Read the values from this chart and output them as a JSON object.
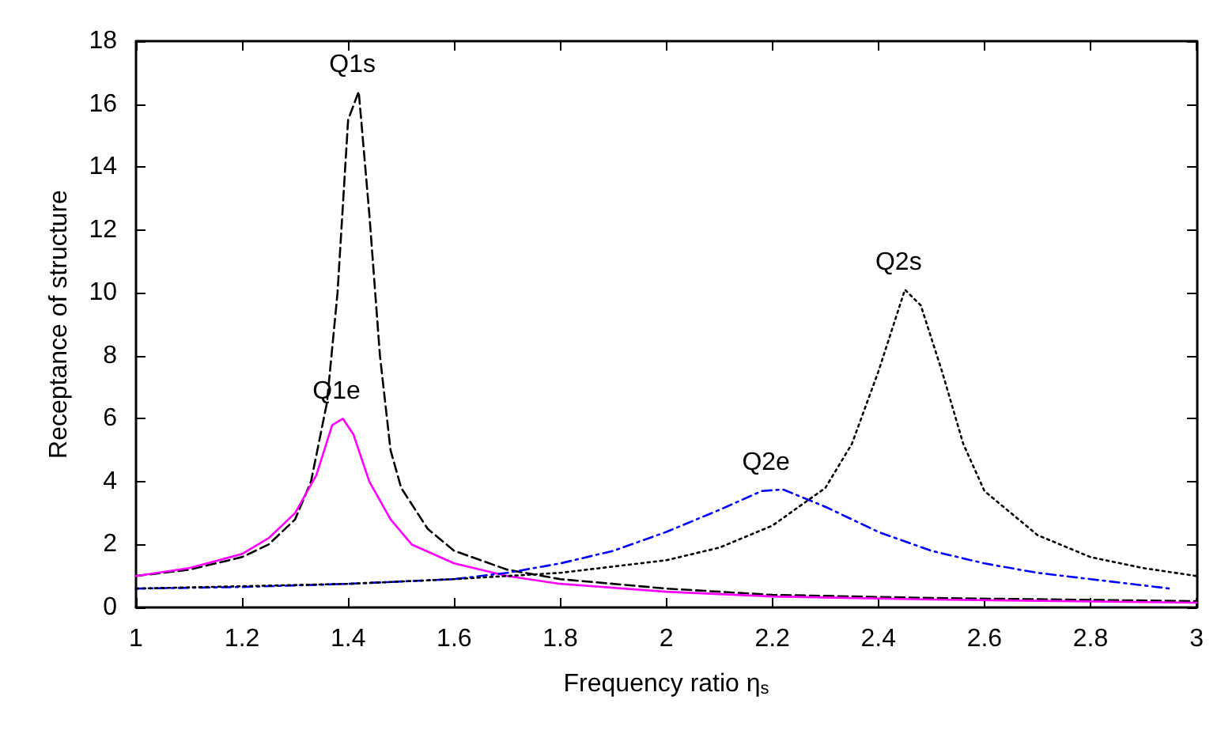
{
  "chart_data": {
    "type": "line",
    "xlabel": "Frequency ratio η$_{s}$",
    "ylabel": "Receptance of structure",
    "xlim": [
      1,
      3
    ],
    "xticks": [
      1,
      1.2,
      1.4,
      1.6,
      1.8,
      2,
      2.2,
      2.4,
      2.6,
      2.8,
      3
    ],
    "ylim": [
      0,
      18
    ],
    "yticks": [
      0,
      2,
      4,
      6,
      8,
      10,
      12,
      14,
      16,
      18
    ],
    "grid": false,
    "marker": "none",
    "series": [
      {
        "color": "#000000",
        "line_style": "dashed",
        "x": [
          1,
          1.1,
          1.2,
          1.25,
          1.3,
          1.33,
          1.36,
          1.38,
          1.4,
          1.42,
          1.44,
          1.46,
          1.48,
          1.5,
          1.55,
          1.6,
          1.7,
          1.8,
          2.0,
          2.2,
          2.5,
          3
        ],
        "values": [
          1.0,
          1.2,
          1.6,
          2.0,
          2.8,
          4,
          6.5,
          10,
          15.5,
          16.4,
          12.5,
          8,
          5,
          3.8,
          2.5,
          1.8,
          1.2,
          0.9,
          0.6,
          0.4,
          0.3,
          0.2
        ]
      },
      {
        "color": "#ff00ff",
        "line_style": "solid",
        "x": [
          1,
          1.1,
          1.2,
          1.25,
          1.3,
          1.34,
          1.37,
          1.39,
          1.41,
          1.44,
          1.48,
          1.52,
          1.6,
          1.7,
          1.8,
          2.0,
          2.2,
          2.5,
          3
        ],
        "values": [
          1.0,
          1.25,
          1.7,
          2.2,
          3.0,
          4.2,
          5.8,
          6.0,
          5.5,
          4.0,
          2.8,
          2.0,
          1.4,
          1.0,
          0.75,
          0.5,
          0.35,
          0.25,
          0.15
        ]
      },
      {
        "color": "#0000ff",
        "line_style": "dashdot",
        "x": [
          1,
          1.2,
          1.4,
          1.6,
          1.7,
          1.8,
          1.9,
          2.0,
          2.1,
          2.18,
          2.22,
          2.3,
          2.4,
          2.5,
          2.6,
          2.7,
          2.8,
          2.95
        ],
        "values": [
          0.6,
          0.65,
          0.75,
          0.9,
          1.1,
          1.4,
          1.8,
          2.4,
          3.1,
          3.7,
          3.75,
          3.2,
          2.4,
          1.8,
          1.4,
          1.1,
          0.9,
          0.6
        ]
      },
      {
        "color": "#000000",
        "line_style": "dotted",
        "x": [
          1,
          1.4,
          1.6,
          1.8,
          2.0,
          2.1,
          2.2,
          2.3,
          2.35,
          2.4,
          2.45,
          2.48,
          2.52,
          2.56,
          2.6,
          2.7,
          2.8,
          2.9,
          3.0
        ],
        "values": [
          0.6,
          0.75,
          0.9,
          1.1,
          1.5,
          1.9,
          2.6,
          3.8,
          5.2,
          7.5,
          10.1,
          9.6,
          7.5,
          5.2,
          3.7,
          2.3,
          1.6,
          1.25,
          1.0
        ]
      }
    ],
    "annotations": [
      {
        "text": "Q1s",
        "x": 1.42,
        "y": 16.4
      },
      {
        "text": "Q1e",
        "x": 1.39,
        "y": 6.0
      },
      {
        "text": "Q2e",
        "x": 2.2,
        "y": 3.75
      },
      {
        "text": "Q2s",
        "x": 2.45,
        "y": 10.1
      }
    ]
  }
}
